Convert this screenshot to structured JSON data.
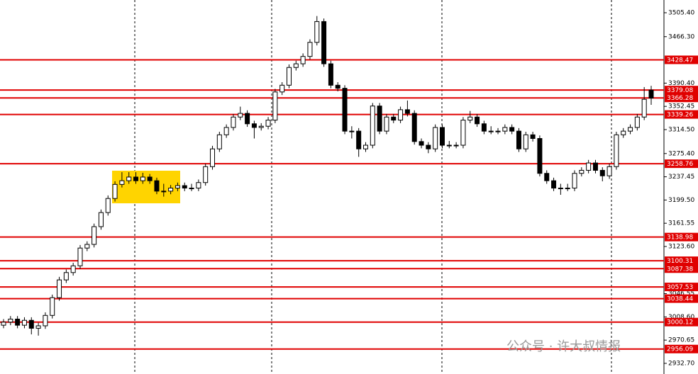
{
  "chart_data": {
    "type": "candlestick",
    "ohlc": [
      [
        2995,
        3005,
        2990,
        3000
      ],
      [
        3000,
        3010,
        2995,
        3005
      ],
      [
        3005,
        3010,
        2990,
        2995
      ],
      [
        2995,
        3008,
        2990,
        3003
      ],
      [
        3003,
        3008,
        2980,
        2990
      ],
      [
        2990,
        2999,
        2978,
        2994
      ],
      [
        2994,
        3016,
        2989,
        3011
      ],
      [
        3011,
        3045,
        3006,
        3040
      ],
      [
        3040,
        3074,
        3035,
        3069
      ],
      [
        3069,
        3086,
        3064,
        3081
      ],
      [
        3081,
        3097,
        3076,
        3092
      ],
      [
        3092,
        3126,
        3087,
        3121
      ],
      [
        3121,
        3132,
        3116,
        3127
      ],
      [
        3127,
        3161,
        3122,
        3156
      ],
      [
        3156,
        3184,
        3151,
        3179
      ],
      [
        3179,
        3207,
        3174,
        3202
      ],
      [
        3202,
        3230,
        3197,
        3225
      ],
      [
        3225,
        3245,
        3220,
        3231
      ],
      [
        3231,
        3245,
        3226,
        3237
      ],
      [
        3237,
        3245,
        3226,
        3231
      ],
      [
        3231,
        3244,
        3226,
        3237
      ],
      [
        3237,
        3242,
        3226,
        3231
      ],
      [
        3231,
        3236,
        3209,
        3214
      ],
      [
        3214,
        3226,
        3205,
        3214
      ],
      [
        3214,
        3224,
        3209,
        3219
      ],
      [
        3219,
        3228,
        3214,
        3223
      ],
      [
        3223,
        3228,
        3214,
        3219
      ],
      [
        3219,
        3226,
        3214,
        3219
      ],
      [
        3219,
        3233,
        3214,
        3228
      ],
      [
        3228,
        3259,
        3223,
        3254
      ],
      [
        3254,
        3288,
        3249,
        3283
      ],
      [
        3283,
        3311,
        3278,
        3306
      ],
      [
        3306,
        3323,
        3301,
        3318
      ],
      [
        3318,
        3340,
        3313,
        3335
      ],
      [
        3335,
        3352,
        3330,
        3341
      ],
      [
        3341,
        3346,
        3319,
        3324
      ],
      [
        3324,
        3329,
        3300,
        3318
      ],
      [
        3318,
        3325,
        3313,
        3320
      ],
      [
        3320,
        3335,
        3315,
        3330
      ],
      [
        3330,
        3381,
        3325,
        3376
      ],
      [
        3376,
        3392,
        3371,
        3387
      ],
      [
        3387,
        3421,
        3382,
        3416
      ],
      [
        3416,
        3427,
        3411,
        3422
      ],
      [
        3422,
        3439,
        3417,
        3434
      ],
      [
        3434,
        3462,
        3429,
        3457
      ],
      [
        3457,
        3500,
        3452,
        3491
      ],
      [
        3491,
        3496,
        3417,
        3422
      ],
      [
        3422,
        3427,
        3382,
        3387
      ],
      [
        3387,
        3392,
        3377,
        3382
      ],
      [
        3382,
        3387,
        3307,
        3312
      ],
      [
        3312,
        3320,
        3300,
        3312
      ],
      [
        3312,
        3317,
        3270,
        3283
      ],
      [
        3283,
        3294,
        3278,
        3289
      ],
      [
        3289,
        3358,
        3284,
        3353
      ],
      [
        3353,
        3358,
        3307,
        3312
      ],
      [
        3312,
        3340,
        3307,
        3335
      ],
      [
        3335,
        3340,
        3325,
        3330
      ],
      [
        3330,
        3352,
        3325,
        3347
      ],
      [
        3347,
        3362,
        3336,
        3341
      ],
      [
        3341,
        3346,
        3290,
        3295
      ],
      [
        3295,
        3300,
        3284,
        3289
      ],
      [
        3289,
        3294,
        3276,
        3283
      ],
      [
        3283,
        3323,
        3278,
        3318
      ],
      [
        3318,
        3323,
        3284,
        3289
      ],
      [
        3289,
        3296,
        3284,
        3289
      ],
      [
        3289,
        3294,
        3284,
        3289
      ],
      [
        3289,
        3335,
        3284,
        3330
      ],
      [
        3330,
        3345,
        3325,
        3335
      ],
      [
        3335,
        3340,
        3319,
        3324
      ],
      [
        3324,
        3329,
        3307,
        3312
      ],
      [
        3312,
        3320,
        3307,
        3312
      ],
      [
        3312,
        3317,
        3307,
        3312
      ],
      [
        3312,
        3323,
        3307,
        3318
      ],
      [
        3318,
        3323,
        3307,
        3312
      ],
      [
        3312,
        3317,
        3278,
        3283
      ],
      [
        3283,
        3311,
        3278,
        3306
      ],
      [
        3306,
        3311,
        3295,
        3300
      ],
      [
        3300,
        3305,
        3238,
        3243
      ],
      [
        3243,
        3248,
        3226,
        3231
      ],
      [
        3231,
        3236,
        3214,
        3219
      ],
      [
        3219,
        3226,
        3208,
        3219
      ],
      [
        3219,
        3226,
        3214,
        3219
      ],
      [
        3219,
        3248,
        3214,
        3243
      ],
      [
        3243,
        3253,
        3238,
        3248
      ],
      [
        3248,
        3265,
        3243,
        3260
      ],
      [
        3260,
        3265,
        3243,
        3248
      ],
      [
        3248,
        3253,
        3230,
        3239
      ],
      [
        3239,
        3259,
        3234,
        3254
      ],
      [
        3254,
        3311,
        3249,
        3306
      ],
      [
        3306,
        3317,
        3301,
        3312
      ],
      [
        3312,
        3323,
        3307,
        3318
      ],
      [
        3318,
        3340,
        3313,
        3335
      ],
      [
        3335,
        3384,
        3330,
        3364
      ],
      [
        3379,
        3386,
        3355,
        3366
      ]
    ],
    "ylim": [
      2915.3,
      3526.2
    ],
    "yticks": [
      {
        "value": 3505.4,
        "label": "3505.40"
      },
      {
        "value": 3466.3,
        "label": "3466.30"
      },
      {
        "value": 3390.4,
        "label": "3390.40"
      },
      {
        "value": 3352.45,
        "label": "3352.45"
      },
      {
        "value": 3314.5,
        "label": "3314.50"
      },
      {
        "value": 3275.4,
        "label": "3275.40"
      },
      {
        "value": 3237.45,
        "label": "3237.45"
      },
      {
        "value": 3199.5,
        "label": "3199.50"
      },
      {
        "value": 3161.55,
        "label": "3161.55"
      },
      {
        "value": 3123.6,
        "label": "3123.60"
      },
      {
        "value": 3046.55,
        "label": "3046.55"
      },
      {
        "value": 3008.6,
        "label": "3008.60"
      },
      {
        "value": 2970.65,
        "label": "2970.65"
      },
      {
        "value": 2932.7,
        "label": "2932.70"
      }
    ],
    "levels": [
      3428.47,
      3379.08,
      3366.28,
      3339.26,
      3258.76,
      3138.98,
      3100.31,
      3087.38,
      3057.53,
      3038.44,
      3000.12,
      2956.09
    ],
    "level_color": "#e00000",
    "watermark": "公众号 · 许大叔情报"
  }
}
